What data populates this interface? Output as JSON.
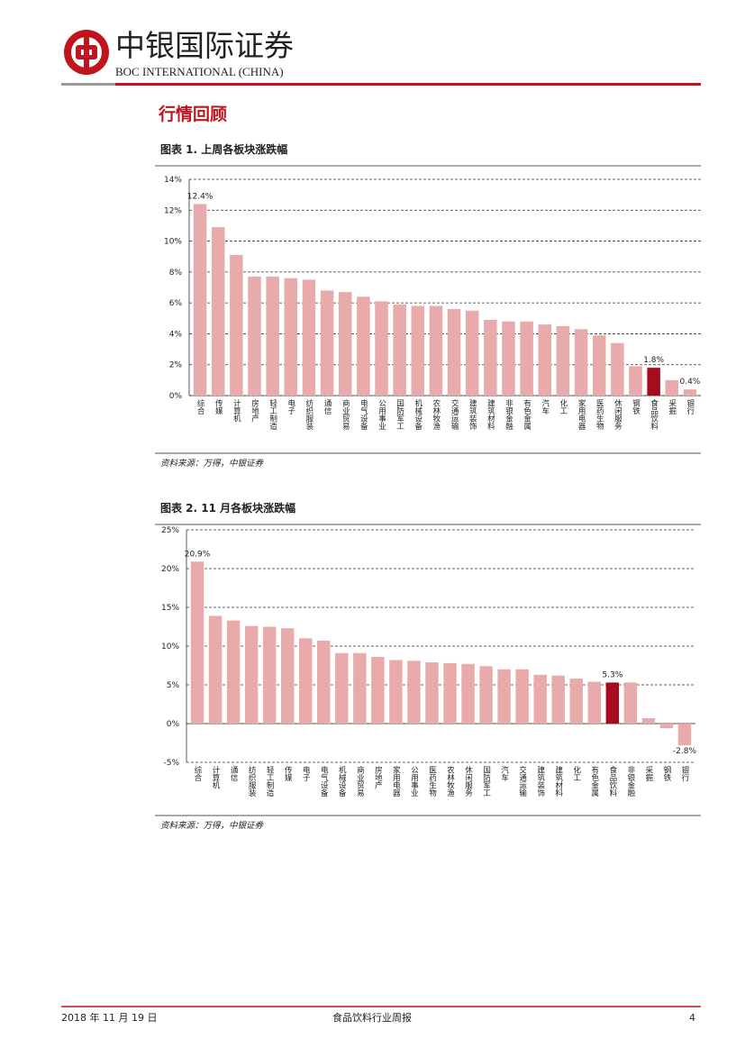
{
  "header": {
    "brand": "中银国际证券",
    "brand_en": "BOC INTERNATIONAL (CHINA)"
  },
  "section_title": "行情回顾",
  "chart_data": [
    {
      "type": "bar",
      "title": "图表 1. 上周各板块涨跌幅",
      "source": "资料来源：万得，中银证券",
      "categories": [
        "综合",
        "传媒",
        "计算机",
        "房地产",
        "轻工制造",
        "电子",
        "纺织服装",
        "通信",
        "商业贸易",
        "电气设备",
        "公用事业",
        "国防军工",
        "机械设备",
        "农林牧渔",
        "交通运输",
        "建筑装饰",
        "建筑材料",
        "非银金融",
        "有色金属",
        "汽车",
        "化工",
        "家用电器",
        "医药生物",
        "休闲服务",
        "钢铁",
        "食品饮料",
        "采掘",
        "银行"
      ],
      "values": [
        12.4,
        10.9,
        9.1,
        7.7,
        7.7,
        7.6,
        7.5,
        6.8,
        6.7,
        6.4,
        6.1,
        5.9,
        5.8,
        5.8,
        5.6,
        5.5,
        4.9,
        4.8,
        4.8,
        4.6,
        4.5,
        4.3,
        3.9,
        3.4,
        1.9,
        1.8,
        1.0,
        0.4
      ],
      "value_labels": [
        "12.4%",
        null,
        null,
        null,
        null,
        null,
        null,
        null,
        null,
        null,
        null,
        null,
        null,
        null,
        null,
        null,
        null,
        null,
        null,
        null,
        null,
        null,
        null,
        null,
        null,
        "1.8%",
        null,
        "0.4%"
      ],
      "colors": [
        "#e8aaaa",
        "#e8aaaa",
        "#e8aaaa",
        "#e8aaaa",
        "#e8aaaa",
        "#e8aaaa",
        "#e8aaaa",
        "#e8aaaa",
        "#e8aaaa",
        "#e8aaaa",
        "#e8aaaa",
        "#e8aaaa",
        "#e8aaaa",
        "#e8aaaa",
        "#e8aaaa",
        "#e8aaaa",
        "#e8aaaa",
        "#e8aaaa",
        "#e8aaaa",
        "#e8aaaa",
        "#e8aaaa",
        "#e8aaaa",
        "#e8aaaa",
        "#e8aaaa",
        "#e8aaaa",
        "#a50d1f",
        "#e8aaaa",
        "#e8aaaa"
      ],
      "ylim": [
        0,
        14
      ],
      "yticks": [
        {
          "value": 0,
          "label": "0%"
        },
        {
          "value": 2,
          "label": "2%"
        },
        {
          "value": 4,
          "label": "4%"
        },
        {
          "value": 6,
          "label": "6%"
        },
        {
          "value": 8,
          "label": "8%"
        },
        {
          "value": 10,
          "label": "10%"
        },
        {
          "value": 12,
          "label": "12%"
        },
        {
          "value": 14,
          "label": "14%"
        }
      ],
      "grid": true
    },
    {
      "type": "bar",
      "title": "图表 2. 11 月各板块涨跌幅",
      "source": "资料来源：万得，中银证券",
      "categories": [
        "综合",
        "计算机",
        "通信",
        "纺织服装",
        "轻工制造",
        "传媒",
        "电子",
        "电气设备",
        "机械设备",
        "商业贸易",
        "房地产",
        "家用电器",
        "公用事业",
        "医药生物",
        "农林牧渔",
        "休闲服务",
        "国防军工",
        "汽车",
        "交通运输",
        "建筑装饰",
        "建筑材料",
        "化工",
        "有色金属",
        "食品饮料",
        "非银金融",
        "采掘",
        "钢铁",
        "银行"
      ],
      "values": [
        20.9,
        13.9,
        13.3,
        12.6,
        12.5,
        12.3,
        11.0,
        10.7,
        9.1,
        9.1,
        8.6,
        8.2,
        8.1,
        7.9,
        7.8,
        7.7,
        7.4,
        7.0,
        7.0,
        6.3,
        6.2,
        5.8,
        5.4,
        5.3,
        5.3,
        0.7,
        -0.6,
        -2.8
      ],
      "value_labels": [
        "20.9%",
        null,
        null,
        null,
        null,
        null,
        null,
        null,
        null,
        null,
        null,
        null,
        null,
        null,
        null,
        null,
        null,
        null,
        null,
        null,
        null,
        null,
        null,
        "5.3%",
        null,
        null,
        null,
        "-2.8%"
      ],
      "colors": [
        "#e8aaaa",
        "#e8aaaa",
        "#e8aaaa",
        "#e8aaaa",
        "#e8aaaa",
        "#e8aaaa",
        "#e8aaaa",
        "#e8aaaa",
        "#e8aaaa",
        "#e8aaaa",
        "#e8aaaa",
        "#e8aaaa",
        "#e8aaaa",
        "#e8aaaa",
        "#e8aaaa",
        "#e8aaaa",
        "#e8aaaa",
        "#e8aaaa",
        "#e8aaaa",
        "#e8aaaa",
        "#e8aaaa",
        "#e8aaaa",
        "#e8aaaa",
        "#a50d1f",
        "#e8aaaa",
        "#e8aaaa",
        "#e8aaaa",
        "#e8aaaa"
      ],
      "ylim": [
        -5,
        25
      ],
      "yticks": [
        {
          "value": -5,
          "label": "-5%"
        },
        {
          "value": 0,
          "label": "0%"
        },
        {
          "value": 5,
          "label": "5%"
        },
        {
          "value": 10,
          "label": "10%"
        },
        {
          "value": 15,
          "label": "15%"
        },
        {
          "value": 20,
          "label": "20%"
        },
        {
          "value": 25,
          "label": "25%"
        }
      ],
      "grid": true
    }
  ],
  "footer": {
    "date": "2018 年 11 月 19 日",
    "report": "食品饮料行业周报",
    "page": "4"
  }
}
